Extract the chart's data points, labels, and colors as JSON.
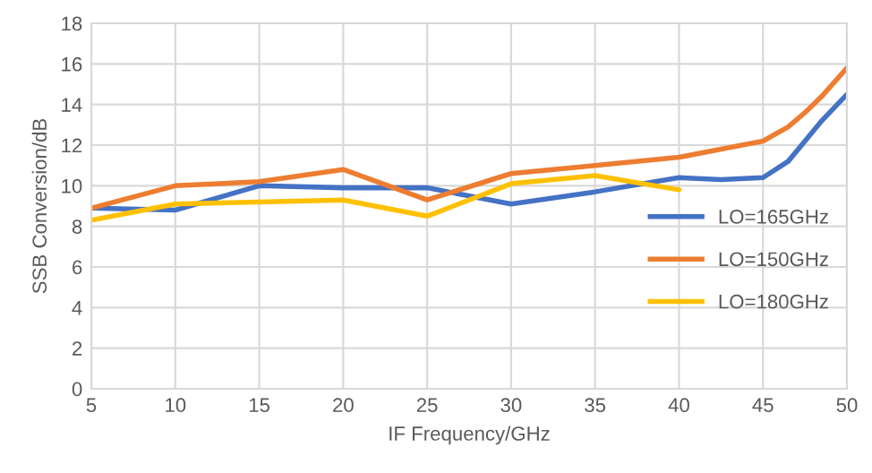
{
  "chart_data": {
    "type": "line",
    "xlabel": "IF Frequency/GHz",
    "ylabel": "SSB Conversion/dB",
    "xlim": [
      5,
      50
    ],
    "xticks": [
      5,
      10,
      15,
      20,
      25,
      30,
      35,
      40,
      45,
      50
    ],
    "ylim": [
      0,
      18
    ],
    "yticks": [
      0,
      2,
      4,
      6,
      8,
      10,
      12,
      14,
      16,
      18
    ],
    "grid": true,
    "legend": "right",
    "marker": "none",
    "line_style": "solid",
    "series": [
      {
        "name": "LO=165GHz",
        "color": "#4472c4",
        "x": [
          5,
          10,
          15,
          20,
          25,
          30,
          35,
          40,
          42.5,
          45,
          46.5,
          47.5,
          48.5,
          50
        ],
        "values": [
          8.9,
          8.8,
          10.0,
          9.9,
          9.9,
          9.1,
          9.7,
          10.4,
          10.3,
          10.4,
          11.2,
          12.2,
          13.2,
          14.5
        ]
      },
      {
        "name": "LO=150GHz",
        "color": "#ed7d31",
        "x": [
          5,
          10,
          15,
          20,
          25,
          30,
          35,
          40,
          42.5,
          45,
          46.5,
          47.5,
          48.5,
          50
        ],
        "values": [
          8.9,
          10.0,
          10.2,
          10.8,
          9.3,
          10.6,
          11.0,
          11.4,
          11.8,
          12.2,
          12.9,
          13.6,
          14.4,
          15.8
        ]
      },
      {
        "name": "LO=180GHz",
        "color": "#ffc000",
        "x": [
          5,
          10,
          15,
          20,
          25,
          30,
          35,
          40
        ],
        "values": [
          8.3,
          9.1,
          9.2,
          9.3,
          8.5,
          10.1,
          10.5,
          9.8
        ]
      }
    ]
  }
}
